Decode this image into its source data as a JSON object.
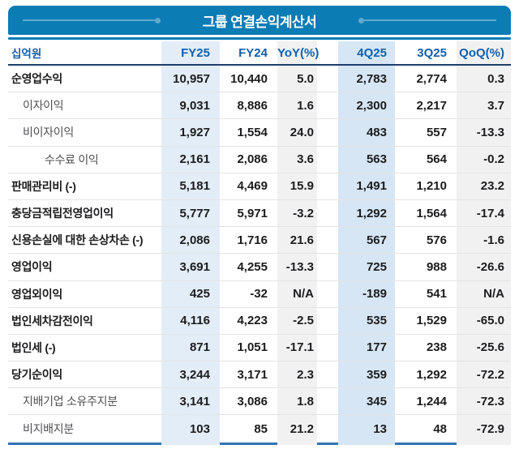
{
  "header": {
    "title": "그룹 연결손익계산서"
  },
  "table": {
    "unit_label": "십억원",
    "columns": [
      "FY25",
      "FY24",
      "YoY(%)",
      "4Q25",
      "3Q25",
      "QoQ(%)"
    ],
    "column_keys": [
      "fy25",
      "fy24",
      "yoy",
      "4q25",
      "3q25",
      "qoq"
    ],
    "rows": [
      {
        "label": "순영업수익",
        "indent": 0,
        "bold": true,
        "values": [
          "10,957",
          "10,440",
          "5.0",
          "2,783",
          "2,774",
          "0.3"
        ]
      },
      {
        "label": "이자이익",
        "indent": 1,
        "bold": false,
        "values": [
          "9,031",
          "8,886",
          "1.6",
          "2,300",
          "2,217",
          "3.7"
        ]
      },
      {
        "label": "비이자이익",
        "indent": 1,
        "bold": false,
        "values": [
          "1,927",
          "1,554",
          "24.0",
          "483",
          "557",
          "-13.3"
        ]
      },
      {
        "label": "수수료 이익",
        "indent": 2,
        "bold": false,
        "values": [
          "2,161",
          "2,086",
          "3.6",
          "563",
          "564",
          "-0.2"
        ]
      },
      {
        "label": "판매관리비 (-)",
        "indent": 0,
        "bold": true,
        "values": [
          "5,181",
          "4,469",
          "15.9",
          "1,491",
          "1,210",
          "23.2"
        ]
      },
      {
        "label": "충당금적립전영업이익",
        "indent": 0,
        "bold": true,
        "values": [
          "5,777",
          "5,971",
          "-3.2",
          "1,292",
          "1,564",
          "-17.4"
        ]
      },
      {
        "label": "신용손실에 대한 손상차손 (-)",
        "indent": 0,
        "bold": true,
        "values": [
          "2,086",
          "1,716",
          "21.6",
          "567",
          "576",
          "-1.6"
        ]
      },
      {
        "label": "영업이익",
        "indent": 0,
        "bold": true,
        "values": [
          "3,691",
          "4,255",
          "-13.3",
          "725",
          "988",
          "-26.6"
        ]
      },
      {
        "label": "영업외이익",
        "indent": 0,
        "bold": true,
        "values": [
          "425",
          "-32",
          "N/A",
          "-189",
          "541",
          "N/A"
        ]
      },
      {
        "label": "법인세차감전이익",
        "indent": 0,
        "bold": true,
        "values": [
          "4,116",
          "4,223",
          "-2.5",
          "535",
          "1,529",
          "-65.0"
        ]
      },
      {
        "label": "법인세 (-)",
        "indent": 0,
        "bold": true,
        "values": [
          "871",
          "1,051",
          "-17.1",
          "177",
          "238",
          "-25.6"
        ]
      },
      {
        "label": "당기순이익",
        "indent": 0,
        "bold": true,
        "values": [
          "3,244",
          "3,171",
          "2.3",
          "359",
          "1,292",
          "-72.2"
        ]
      },
      {
        "label": "지배기업 소유주지분",
        "indent": 1,
        "bold": false,
        "values": [
          "3,141",
          "3,086",
          "1.8",
          "345",
          "1,244",
          "-72.3"
        ]
      },
      {
        "label": "비지배지분",
        "indent": 1,
        "bold": false,
        "values": [
          "103",
          "85",
          "21.2",
          "13",
          "48",
          "-72.9"
        ]
      }
    ]
  },
  "colors": {
    "bar_blue": "#0b7cb4",
    "deco_blue": "#5fa9cf",
    "head_blue": "#1160ac",
    "navy_header_line": "#1c3e6e",
    "bottom_border_blue": "#2f74b5",
    "stripe_fy25": "#e2edf7",
    "stripe_4q25": "#d6e6f4",
    "stripe_gray": "#f1f1f2"
  }
}
